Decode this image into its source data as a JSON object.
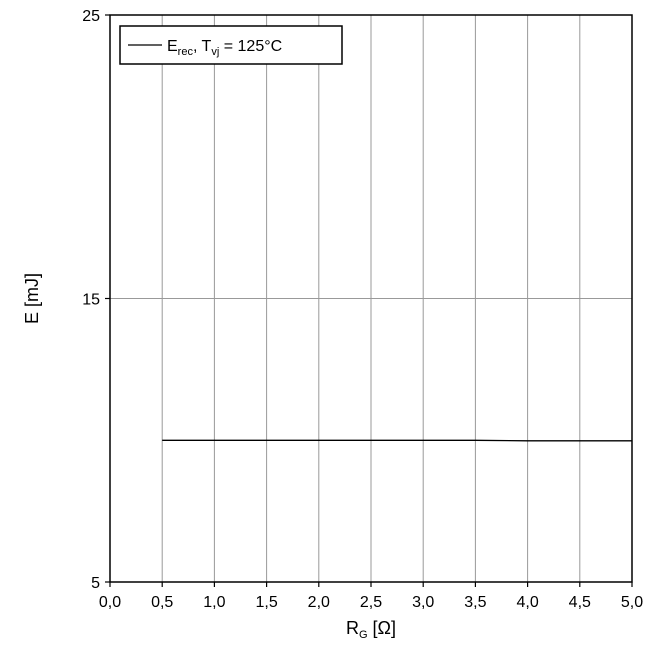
{
  "chart_data": {
    "type": "line",
    "title": "",
    "xlabel": "R",
    "xlabel_sub": "G",
    "xlabel_unit": " [Ω]",
    "ylabel": "E [mJ]",
    "xlim": [
      0,
      5
    ],
    "ylim": [
      5,
      25
    ],
    "x_ticks": [
      0,
      0.5,
      1,
      1.5,
      2,
      2.5,
      3,
      3.5,
      4,
      4.5,
      5
    ],
    "x_tick_labels": [
      "0,0",
      "0,5",
      "1,0",
      "1,5",
      "2,0",
      "2,5",
      "3,0",
      "3,5",
      "4,0",
      "4,5",
      "5,0"
    ],
    "y_ticks": [
      5,
      15,
      25
    ],
    "y_tick_labels": [
      "5",
      "15",
      "25"
    ],
    "grid": true,
    "legend_position": "top-left",
    "legend": {
      "main1": "E",
      "sub1": "rec",
      "mid": ", T",
      "sub2": "vj",
      "tail": " = 125°C"
    },
    "series": [
      {
        "color": "#000000",
        "x": [
          0.5,
          1.0,
          1.5,
          2.0,
          2.5,
          3.0,
          3.5,
          4.0,
          4.5,
          5.0
        ],
        "y": [
          10.0,
          10.0,
          10.0,
          10.0,
          10.0,
          10.0,
          10.0,
          9.98,
          9.98,
          9.98
        ]
      }
    ]
  }
}
